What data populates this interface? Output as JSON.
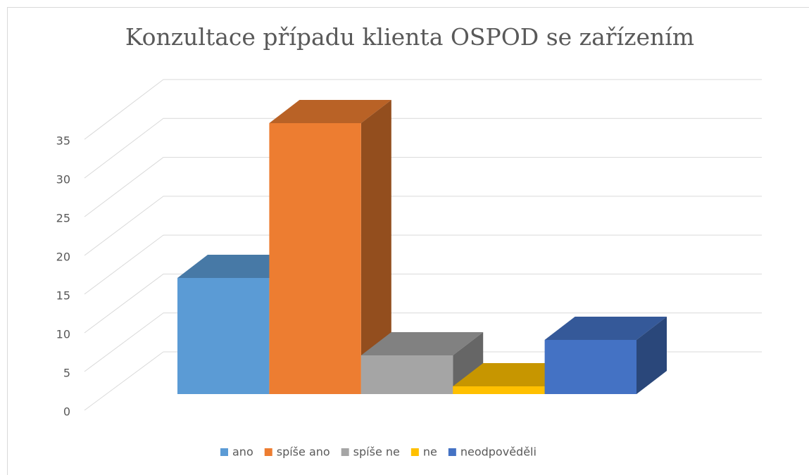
{
  "chart_data": {
    "type": "bar3d",
    "title": "Konzultace případu klienta OSPOD se zařízením",
    "series": [
      {
        "name": "ano",
        "color": "#5b9bd5",
        "values": [
          15
        ]
      },
      {
        "name": "spíše ano",
        "color": "#ed7d31",
        "values": [
          35
        ]
      },
      {
        "name": "spíše ne",
        "color": "#a5a5a5",
        "values": [
          5
        ]
      },
      {
        "name": "ne",
        "color": "#ffc000",
        "values": [
          1
        ]
      },
      {
        "name": "neodpověděli",
        "color": "#4472c4",
        "values": [
          7
        ]
      }
    ],
    "ylim": [
      0,
      35
    ],
    "yticks": [
      0,
      5,
      10,
      15,
      20,
      25,
      30,
      35
    ],
    "grid": true,
    "legend": "bottom"
  }
}
